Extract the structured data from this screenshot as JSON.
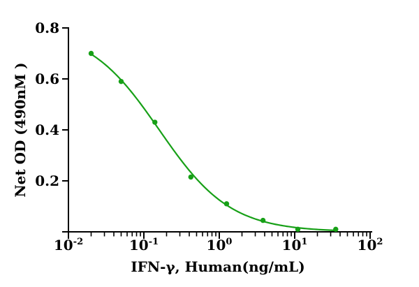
{
  "figure": {
    "background": "#ffffff"
  },
  "chart_data": {
    "type": "scatter",
    "title": "",
    "xlabel": "IFN-γ, Human(ng/mL)",
    "ylabel": "Net OD (490nM )",
    "x_scale": "log10",
    "xlim": [
      0.01,
      100
    ],
    "ylim": [
      0,
      0.8
    ],
    "points": {
      "x": [
        0.02,
        0.05,
        0.14,
        0.42,
        1.25,
        3.8,
        11,
        35
      ],
      "y": [
        0.7,
        0.59,
        0.43,
        0.215,
        0.11,
        0.045,
        0.01,
        0.01
      ]
    },
    "fit_curve": {
      "model": "4PL",
      "top": 0.8,
      "bottom": 0,
      "ec50": 0.16,
      "hill": 0.92
    },
    "y_ticks": [
      0,
      0.2,
      0.4,
      0.6,
      0.8
    ],
    "y_tick_labels": [
      "",
      "0.2",
      "0.4",
      "0.6",
      "0.8"
    ],
    "x_tick_exponents": [
      -2,
      -1,
      0,
      1,
      2
    ],
    "series_color": "#17a017",
    "axis_color": "#000000",
    "grid": false,
    "legend": "none"
  }
}
